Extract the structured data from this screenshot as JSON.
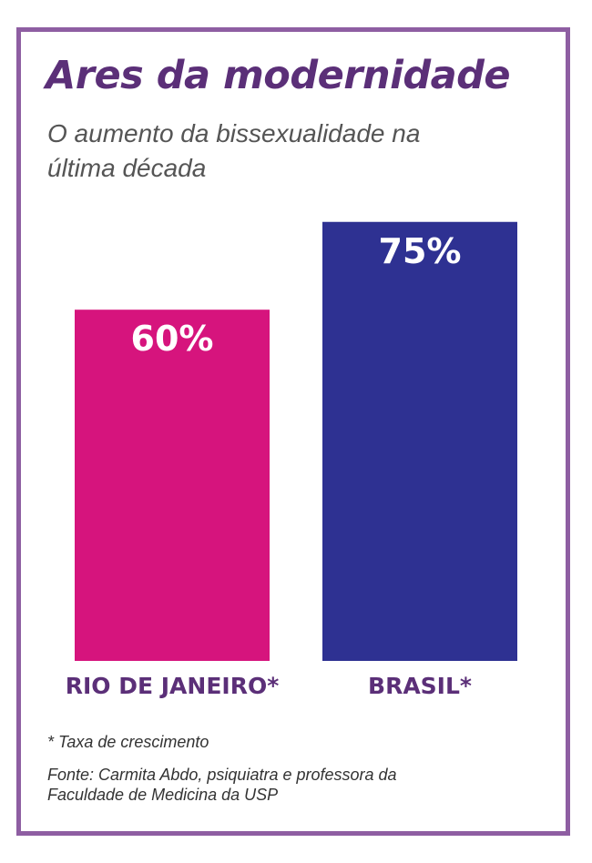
{
  "title": "Ares da modernidade",
  "subtitle": "O aumento da bissexualidade na última década",
  "footnote": "* Taxa de crescimento",
  "source": "Fonte: Carmita Abdo, psiquiatra e professora da Faculdade de Medicina da USP",
  "colors": {
    "frame": "#8e5ea2",
    "title": "#5b2f78",
    "category_label": "#5b2f78"
  },
  "chart_data": {
    "type": "bar",
    "title": "Ares da modernidade",
    "subtitle": "O aumento da bissexualidade na última década",
    "xlabel": "",
    "ylabel": "",
    "categories": [
      "RIO DE JANEIRO*",
      "BRASIL*"
    ],
    "values": [
      60,
      75
    ],
    "value_labels": [
      "60%",
      "75%"
    ],
    "unit": "%",
    "bar_colors": [
      "#d6147d",
      "#2e3192"
    ],
    "ylim": [
      0,
      100
    ],
    "grid": false,
    "legend": "none"
  }
}
